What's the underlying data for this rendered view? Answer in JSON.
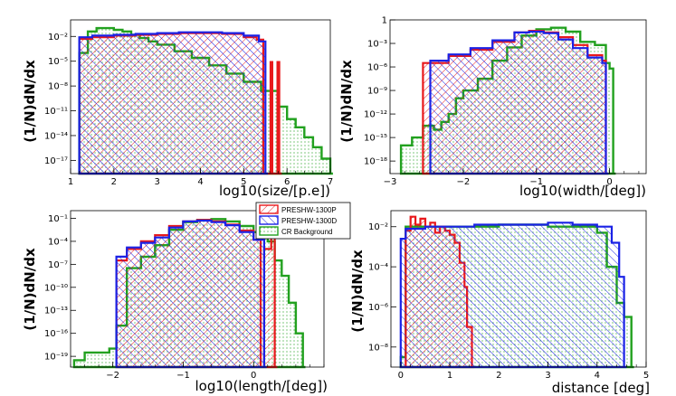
{
  "chart_data": [
    {
      "type": "histogram",
      "ylabel": "(1/N)dN/dx",
      "xlabel": "log10(size/[p.e])",
      "xlim": [
        1,
        7
      ],
      "ylim_log10": [
        -18.6,
        0
      ],
      "xticks": [
        "1",
        "2",
        "3",
        "4",
        "5",
        "6",
        "7"
      ],
      "yticks": [
        {
          "exp": -2,
          "label": "10⁻²"
        },
        {
          "exp": -5,
          "label": "10⁻⁵"
        },
        {
          "exp": -8,
          "label": "10⁻⁸"
        },
        {
          "exp": -11,
          "label": "10⁻¹¹"
        },
        {
          "exp": -14,
          "label": "10⁻¹⁴"
        },
        {
          "exp": -17,
          "label": "10⁻¹⁷"
        }
      ],
      "series": [
        {
          "name": "PRESHW-1300P",
          "x": [
            1.2,
            1.5,
            2.0,
            2.5,
            3.0,
            3.5,
            4.0,
            4.5,
            5.0,
            5.3,
            5.45,
            5.62,
            5.66,
            5.78,
            5.82
          ],
          "log10y": [
            -2.3,
            -2.1,
            -1.9,
            -1.8,
            -1.7,
            -1.6,
            -1.6,
            -1.7,
            -2.1,
            -2.4,
            -18.6,
            -5.1,
            -18.6,
            -5.1,
            -18.6
          ]
        },
        {
          "name": "PRESHW-1300D",
          "x": [
            1.2,
            1.5,
            2.0,
            2.5,
            3.0,
            3.5,
            4.0,
            4.5,
            5.0,
            5.35,
            5.5
          ],
          "log10y": [
            -2.1,
            -1.9,
            -1.8,
            -1.7,
            -1.6,
            -1.5,
            -1.5,
            -1.6,
            -1.9,
            -2.6,
            -18.6
          ]
        },
        {
          "name": "CR Background",
          "x": [
            1.2,
            1.4,
            1.6,
            1.8,
            2.0,
            2.2,
            2.4,
            2.6,
            2.8,
            3.0,
            3.4,
            3.8,
            4.2,
            4.6,
            5.0,
            5.4,
            5.8,
            6.0,
            6.2,
            6.4,
            6.6,
            6.8,
            7.0
          ],
          "log10y": [
            -4.0,
            -1.4,
            -1.0,
            -1.0,
            -1.2,
            -1.4,
            -1.8,
            -2.2,
            -2.6,
            -3.0,
            -3.8,
            -4.6,
            -5.5,
            -6.5,
            -7.5,
            -8.6,
            -10.5,
            -12.0,
            -13.0,
            -14.2,
            -15.4,
            -16.8,
            -18.6
          ]
        }
      ]
    },
    {
      "type": "histogram",
      "ylabel": "(1/N)dN/dx",
      "xlabel": "log10(width/[deg])",
      "xlim": [
        -3,
        0.5
      ],
      "ylim_log10": [
        -19.6,
        0
      ],
      "xticks": [
        "−3",
        "−2",
        "−1",
        "0"
      ],
      "yticks": [
        {
          "exp": 0,
          "label": "1"
        },
        {
          "exp": -3,
          "label": "10⁻³"
        },
        {
          "exp": -6,
          "label": "10⁻⁶"
        },
        {
          "exp": -9,
          "label": "10⁻⁹"
        },
        {
          "exp": -12,
          "label": "10⁻¹²"
        },
        {
          "exp": -15,
          "label": "10⁻¹⁵"
        },
        {
          "exp": -18,
          "label": "10⁻¹⁸"
        }
      ],
      "series": [
        {
          "name": "PRESHW-1300P",
          "x": [
            -2.55,
            -2.2,
            -1.9,
            -1.6,
            -1.3,
            -1.1,
            -0.9,
            -0.7,
            -0.5,
            -0.3,
            -0.1,
            -0.05
          ],
          "log10y": [
            -5.5,
            -4.6,
            -3.8,
            -2.8,
            -1.6,
            -1.4,
            -1.6,
            -2.2,
            -3.2,
            -4.5,
            -5.2,
            -19.6
          ]
        },
        {
          "name": "PRESHW-1300D",
          "x": [
            -2.45,
            -2.2,
            -1.9,
            -1.6,
            -1.3,
            -1.1,
            -0.9,
            -0.7,
            -0.5,
            -0.3,
            -0.1,
            -0.05
          ],
          "log10y": [
            -5.2,
            -4.4,
            -3.6,
            -2.6,
            -1.6,
            -1.5,
            -1.7,
            -2.5,
            -3.6,
            -4.8,
            -5.5,
            -19.6
          ]
        },
        {
          "name": "CR Background",
          "x": [
            -2.85,
            -2.7,
            -2.55,
            -2.4,
            -2.3,
            -2.2,
            -2.1,
            -2.0,
            -1.8,
            -1.6,
            -1.4,
            -1.2,
            -1.0,
            -0.8,
            -0.6,
            -0.4,
            -0.2,
            -0.05,
            0.0,
            0.05
          ],
          "log10y": [
            -16,
            -15,
            -13.5,
            -14,
            -13,
            -12,
            -10,
            -9,
            -7.5,
            -5.2,
            -3.5,
            -2.0,
            -1.2,
            -1.0,
            -1.5,
            -2.8,
            -3.2,
            -5.5,
            -6.2,
            -19.6
          ]
        }
      ]
    },
    {
      "type": "histogram",
      "ylabel": "(1/N)dN/dx",
      "xlabel": "log10(length/[deg])",
      "xlim": [
        -2.6,
        1.0
      ],
      "ylim_log10": [
        -20.4,
        0
      ],
      "xticks": [
        "−2",
        "−1",
        "0"
      ],
      "yticks": [
        {
          "exp": -1,
          "label": "10⁻¹"
        },
        {
          "exp": -4,
          "label": "10⁻⁴"
        },
        {
          "exp": -7,
          "label": "10⁻⁷"
        },
        {
          "exp": -10,
          "label": "10⁻¹⁰"
        },
        {
          "exp": -13,
          "label": "10⁻¹³"
        },
        {
          "exp": -16,
          "label": "10⁻¹⁶"
        },
        {
          "exp": -19,
          "label": "10⁻¹⁹"
        }
      ],
      "series": [
        {
          "name": "PRESHW-1300P",
          "x": [
            -1.95,
            -1.8,
            -1.6,
            -1.4,
            -1.2,
            -1.0,
            -0.8,
            -0.6,
            -0.4,
            -0.2,
            0.0,
            0.1,
            0.15,
            0.25,
            0.3
          ],
          "log10y": [
            -6.5,
            -5.0,
            -4.0,
            -3.2,
            -2.0,
            -1.4,
            -1.2,
            -1.4,
            -1.8,
            -2.6,
            -3.8,
            -20.4,
            -5.0,
            -3.0,
            -20.4
          ]
        },
        {
          "name": "PRESHW-1300D",
          "x": [
            -1.95,
            -1.8,
            -1.6,
            -1.4,
            -1.2,
            -1.0,
            -0.8,
            -0.6,
            -0.4,
            -0.2,
            0.0,
            0.15
          ],
          "log10y": [
            -6.0,
            -4.8,
            -4.2,
            -3.5,
            -2.2,
            -1.4,
            -1.3,
            -1.5,
            -1.9,
            -2.8,
            -3.8,
            -20.4
          ]
        },
        {
          "name": "CR Background",
          "x": [
            -2.55,
            -2.4,
            -2.2,
            -2.05,
            -1.95,
            -1.8,
            -1.6,
            -1.4,
            -1.2,
            -1.0,
            -0.8,
            -0.6,
            -0.4,
            -0.2,
            0.0,
            0.2,
            0.3,
            0.4,
            0.5,
            0.6,
            0.7
          ],
          "log10y": [
            -19.5,
            -18.5,
            -18.5,
            -18.0,
            -15.0,
            -7.5,
            -6.0,
            -4.5,
            -2.5,
            -1.5,
            -1.2,
            -1.1,
            -1.4,
            -2.0,
            -2.8,
            -4.0,
            -6.5,
            -8.5,
            -12.0,
            -16.0,
            -20.4
          ]
        }
      ]
    },
    {
      "type": "histogram",
      "ylabel": "(1/N)dN/dx",
      "xlabel": "distance [deg]",
      "xlim": [
        -0.2,
        5.0
      ],
      "ylim_log10": [
        -9,
        -1.2
      ],
      "xticks": [
        "0",
        "1",
        "2",
        "3",
        "4",
        "5"
      ],
      "yticks": [
        {
          "exp": -2,
          "label": "10⁻²"
        },
        {
          "exp": -4,
          "label": "10⁻⁴"
        },
        {
          "exp": -6,
          "label": "10⁻⁶"
        },
        {
          "exp": -8,
          "label": "10⁻⁸"
        }
      ],
      "series": [
        {
          "name": "PRESHW-1300P",
          "x": [
            0.1,
            0.2,
            0.3,
            0.4,
            0.5,
            0.6,
            0.7,
            0.8,
            0.9,
            1.0,
            1.1,
            1.2,
            1.3,
            1.35,
            1.45
          ],
          "log10y": [
            -2.2,
            -1.5,
            -1.9,
            -1.6,
            -2.0,
            -1.8,
            -2.3,
            -2.0,
            -2.2,
            -2.4,
            -2.8,
            -3.8,
            -5.0,
            -7.0,
            -9
          ]
        },
        {
          "name": "PRESHW-1300D",
          "x": [
            0.0,
            0.1,
            0.5,
            1.0,
            1.5,
            2.0,
            2.5,
            3.0,
            3.5,
            4.0,
            4.3,
            4.45,
            4.55
          ],
          "log10y": [
            -2.6,
            -2.1,
            -2.0,
            -2.0,
            -1.9,
            -1.9,
            -1.9,
            -1.8,
            -1.9,
            -2.0,
            -2.8,
            -4.5,
            -9
          ]
        },
        {
          "name": "CR Background",
          "x": [
            0.0,
            0.1,
            0.5,
            1.0,
            1.5,
            2.0,
            2.5,
            3.0,
            3.5,
            4.0,
            4.2,
            4.4,
            4.55,
            4.7
          ],
          "log10y": [
            -8.5,
            -2.0,
            -2.0,
            -2.0,
            -2.0,
            -1.9,
            -1.9,
            -2.0,
            -2.0,
            -2.3,
            -4.0,
            -5.8,
            -6.5,
            -9
          ]
        }
      ]
    }
  ],
  "legend": {
    "entries": [
      "PRESHW-1300P",
      "PRESHW-1300D",
      "CR Background"
    ]
  },
  "colors": {
    "proton": "#e8191c",
    "diffuse": "#1a22e6",
    "background": "#22a11f",
    "hatch_mix": "#8a4fb0"
  }
}
